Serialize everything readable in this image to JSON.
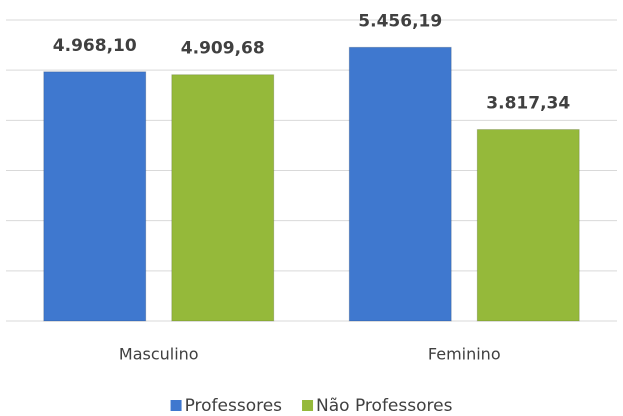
{
  "chart_data": {
    "type": "bar",
    "categories": [
      "Masculino",
      "Feminino"
    ],
    "series": [
      {
        "name": "Professores",
        "color": "#3f78cf",
        "values": [
          4968.1,
          5456.19
        ],
        "value_labels": [
          "4.968,10",
          "5.456,19"
        ]
      },
      {
        "name": "Não Professores",
        "color": "#95b93a",
        "values": [
          4909.68,
          3817.34
        ],
        "value_labels": [
          "4.909,68",
          "3.817,34"
        ]
      }
    ],
    "ylim": [
      0,
      6000
    ],
    "yticks": [
      0,
      1000,
      2000,
      3000,
      4000,
      5000,
      6000
    ],
    "grid": true,
    "legend": "bottom"
  }
}
